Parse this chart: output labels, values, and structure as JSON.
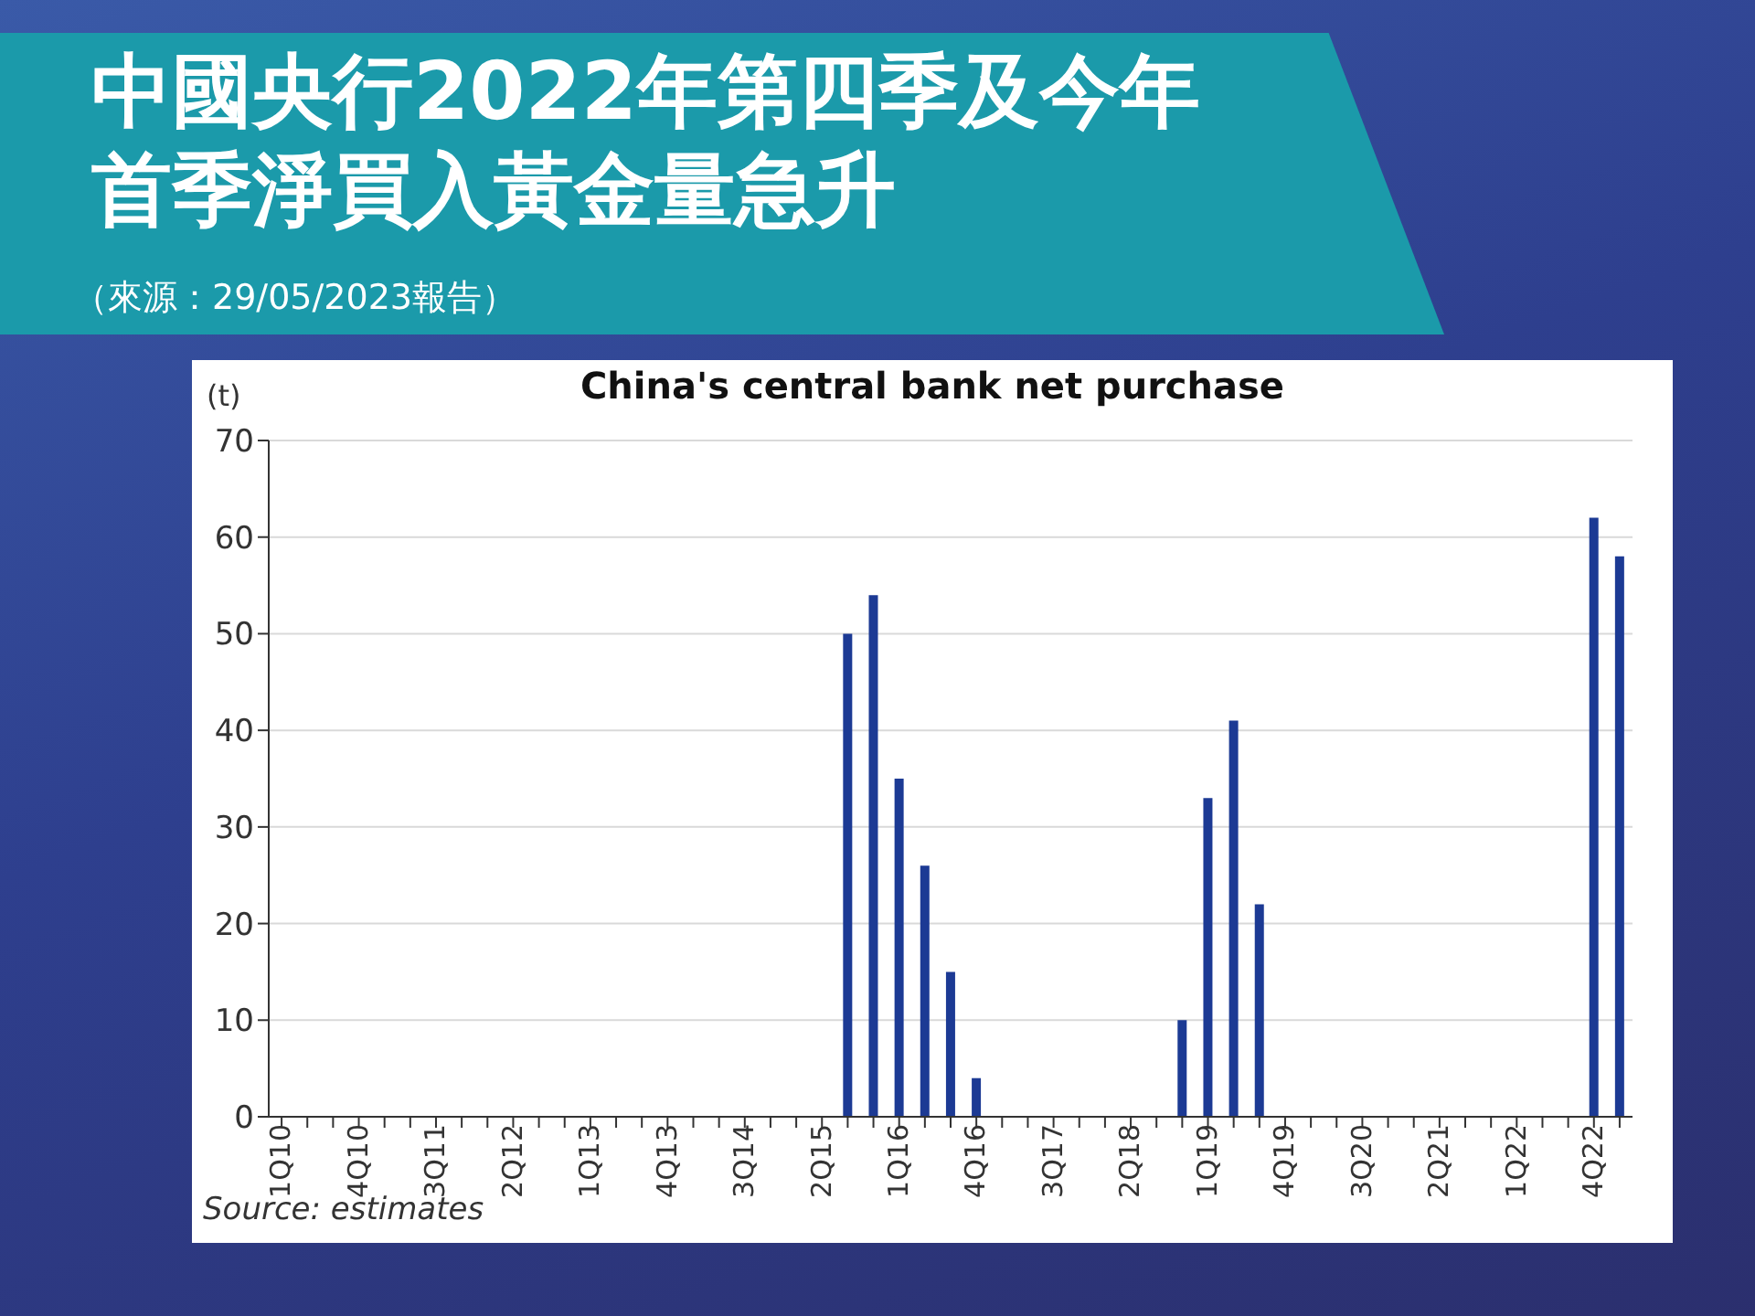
{
  "chart_data": {
    "type": "bar",
    "title": "中國央行2022年第四季及今年首季淨買入黃金量急升",
    "subtitle": "（來源：29/05/2023報告）",
    "ylabel": "(t)",
    "annotations": [
      "China's central bank net purchase",
      "Source: estimates"
    ],
    "categories": [
      "1Q10",
      null,
      null,
      "4Q10",
      null,
      null,
      "3Q11",
      null,
      null,
      "2Q12",
      null,
      null,
      "1Q13",
      null,
      null,
      "4Q13",
      null,
      null,
      "3Q14",
      null,
      null,
      "2Q15",
      null,
      null,
      "1Q16",
      null,
      null,
      "4Q16",
      null,
      null,
      "3Q17",
      null,
      null,
      "2Q18",
      null,
      null,
      "1Q19",
      null,
      null,
      "4Q19",
      null,
      null,
      "3Q20",
      null,
      null,
      "2Q21",
      null,
      null,
      "1Q22",
      null,
      null,
      "4Q22",
      null
    ],
    "values": [
      0,
      0,
      0,
      0,
      0,
      0,
      0,
      0,
      0,
      0,
      0,
      0,
      0,
      0,
      0,
      0,
      0,
      0,
      0,
      0,
      0,
      0,
      50,
      54,
      35,
      26,
      15,
      4,
      0,
      0,
      0,
      0,
      0,
      0,
      0,
      10,
      33,
      41,
      22,
      0,
      0,
      0,
      0,
      0,
      0,
      0,
      0,
      0,
      0,
      0,
      0,
      62,
      58
    ],
    "color": "#1c3a94",
    "ylim": [
      0,
      70
    ],
    "yticks": [
      0,
      10,
      20,
      30,
      40,
      50,
      60,
      70
    ],
    "grid": "y"
  }
}
